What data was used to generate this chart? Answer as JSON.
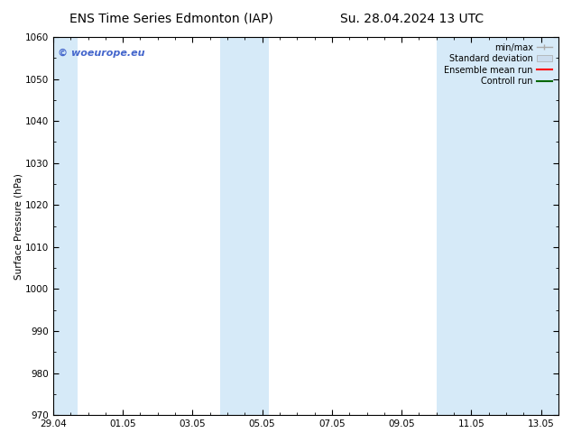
{
  "title_left": "ENS Time Series Edmonton (IAP)",
  "title_right": "Su. 28.04.2024 13 UTC",
  "ylabel": "Surface Pressure (hPa)",
  "xlabel": "",
  "xlim": [
    0,
    14.5
  ],
  "ylim": [
    970,
    1060
  ],
  "yticks": [
    970,
    980,
    990,
    1000,
    1010,
    1020,
    1030,
    1040,
    1050,
    1060
  ],
  "xtick_labels": [
    "29.04",
    "01.05",
    "03.05",
    "05.05",
    "07.05",
    "09.05",
    "11.05",
    "13.05"
  ],
  "xtick_positions": [
    0,
    2,
    4,
    6,
    8,
    10,
    12,
    14
  ],
  "watermark": "© woeurope.eu",
  "watermark_color": "#4466cc",
  "bg_color": "#ffffff",
  "shaded_bands": [
    {
      "x_start": -0.2,
      "x_end": 0.7,
      "color": "#d6eaf8"
    },
    {
      "x_start": 4.8,
      "x_end": 6.2,
      "color": "#d6eaf8"
    },
    {
      "x_start": 11.0,
      "x_end": 14.6,
      "color": "#d6eaf8"
    }
  ],
  "legend_items": [
    {
      "label": "min/max",
      "color": "#aaaaaa",
      "type": "line_with_caps"
    },
    {
      "label": "Standard deviation",
      "color": "#ccddee",
      "type": "filled_rect"
    },
    {
      "label": "Ensemble mean run",
      "color": "#ff0000",
      "type": "line"
    },
    {
      "label": "Controll run",
      "color": "#006600",
      "type": "line"
    }
  ],
  "title_fontsize": 10,
  "tick_fontsize": 7.5,
  "legend_fontsize": 7,
  "watermark_fontsize": 8
}
